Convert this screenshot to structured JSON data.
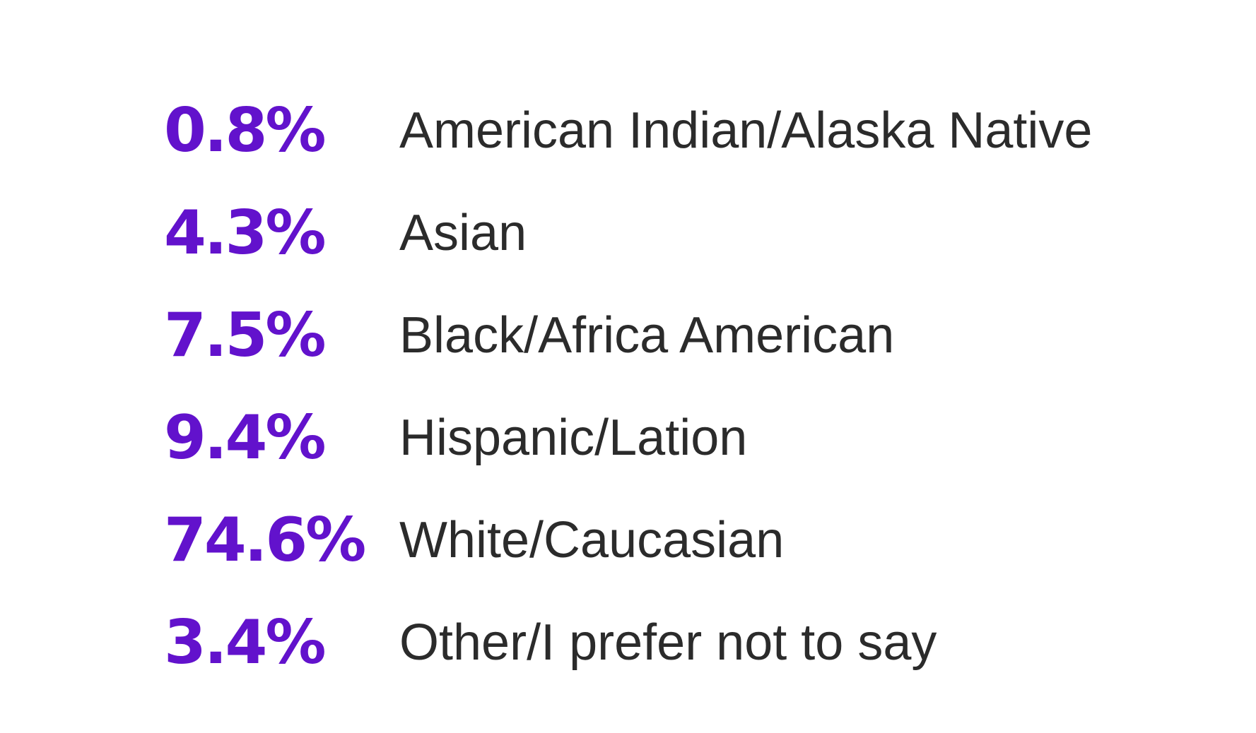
{
  "colors": {
    "value": "#6212cc",
    "label": "#2b2b2b",
    "background": "#ffffff"
  },
  "stats": [
    {
      "value": "0.8%",
      "label": "American Indian/Alaska Native"
    },
    {
      "value": "4.3%",
      "label": "Asian"
    },
    {
      "value": "7.5%",
      "label": "Black/Africa American"
    },
    {
      "value": "9.4%",
      "label": "Hispanic/Lation"
    },
    {
      "value": "74.6%",
      "label": "White/Caucasian"
    },
    {
      "value": "3.4%",
      "label": "Other/I prefer not to say"
    }
  ]
}
